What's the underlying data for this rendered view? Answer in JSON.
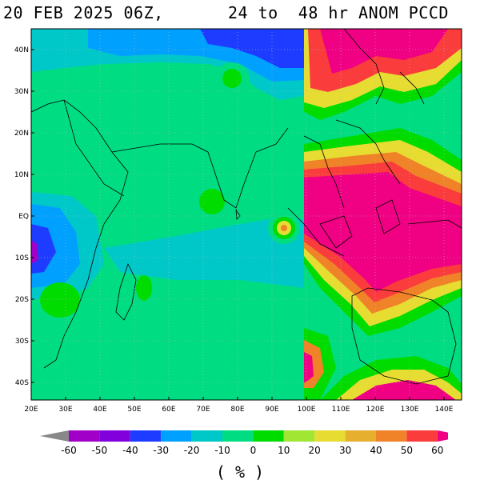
{
  "header": {
    "date": "20 FEB 2025 06Z,",
    "range": "24 to  48 hr ANOM PCCD"
  },
  "map": {
    "lat_labels": [
      "40N",
      "30N",
      "20N",
      "10N",
      "EQ",
      "10S",
      "20S",
      "30S",
      "40S"
    ],
    "lon_labels": [
      "20E",
      "30E",
      "40E",
      "50E",
      "60E",
      "70E",
      "80E",
      "90E",
      "100E",
      "110E",
      "120E",
      "130E",
      "140E"
    ],
    "lon_range": [
      20,
      145
    ],
    "lat_range": [
      -45,
      45
    ]
  },
  "legend": {
    "ticks": [
      "-60",
      "-50",
      "-40",
      "-30",
      "-20",
      "-10",
      "0",
      "10",
      "20",
      "30",
      "40",
      "50",
      "60"
    ],
    "colors": [
      "#888888",
      "#a000c8",
      "#8200dc",
      "#1e3cff",
      "#00a0ff",
      "#00c8c8",
      "#00dc82",
      "#00dc00",
      "#a0e632",
      "#e6dc32",
      "#e6af2d",
      "#f08228",
      "#fa3c3c",
      "#f00082"
    ],
    "unit": "( % )"
  }
}
